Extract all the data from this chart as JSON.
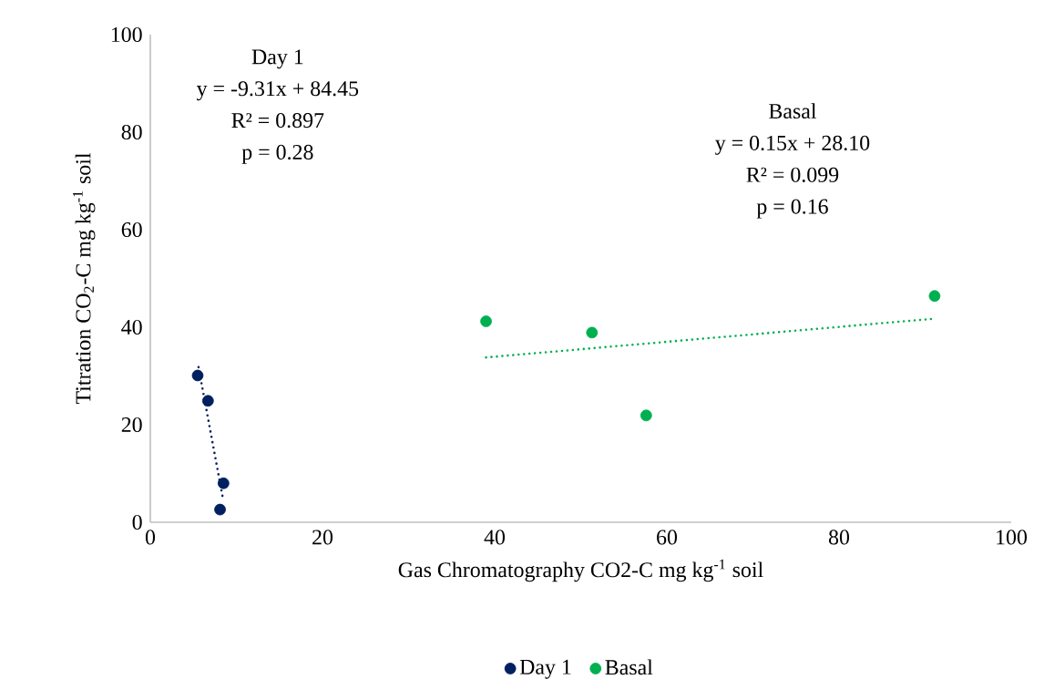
{
  "chart_data": {
    "type": "scatter",
    "xlabel": "Gas Chromatography CO2-C mg kg$^{-1}$ soil",
    "ylabel": "Titration CO$_{2}$-C mg kg$^{-1}$ soil",
    "xlim": [
      0,
      100
    ],
    "ylim": [
      0,
      100
    ],
    "xticks": [
      0,
      20,
      40,
      60,
      80,
      100
    ],
    "yticks": [
      0,
      20,
      40,
      60,
      80,
      100
    ],
    "legend": "bottom",
    "marker": "circle",
    "series": [
      {
        "name": "Day 1",
        "color": "#002060",
        "x": [
          5.5,
          6.7,
          8.5,
          8.1
        ],
        "values": [
          30.1,
          24.9,
          8.0,
          2.6
        ]
      },
      {
        "name": "Basal",
        "color": "#00b050",
        "x": [
          39.0,
          51.3,
          57.6,
          91.1
        ],
        "values": [
          41.2,
          38.9,
          21.9,
          46.4
        ]
      },
      {
        "color": "#002060",
        "type": "line",
        "line_style": "dotted",
        "marker": "none",
        "x": [
          5.6,
          8.4
        ],
        "values": [
          31.8,
          5.2
        ]
      },
      {
        "color": "#00b050",
        "type": "line",
        "line_style": "dotted",
        "marker": "none",
        "x": [
          39.0,
          90.7
        ],
        "values": [
          33.8,
          41.7
        ]
      }
    ],
    "annotations": [
      "Day 1",
      "y = -9.31x + 84.45",
      "R² = 0.897",
      "p = 0.28",
      "Basal",
      "y = 0.15x + 28.10",
      "R² = 0.099",
      "p = 0.16"
    ]
  }
}
